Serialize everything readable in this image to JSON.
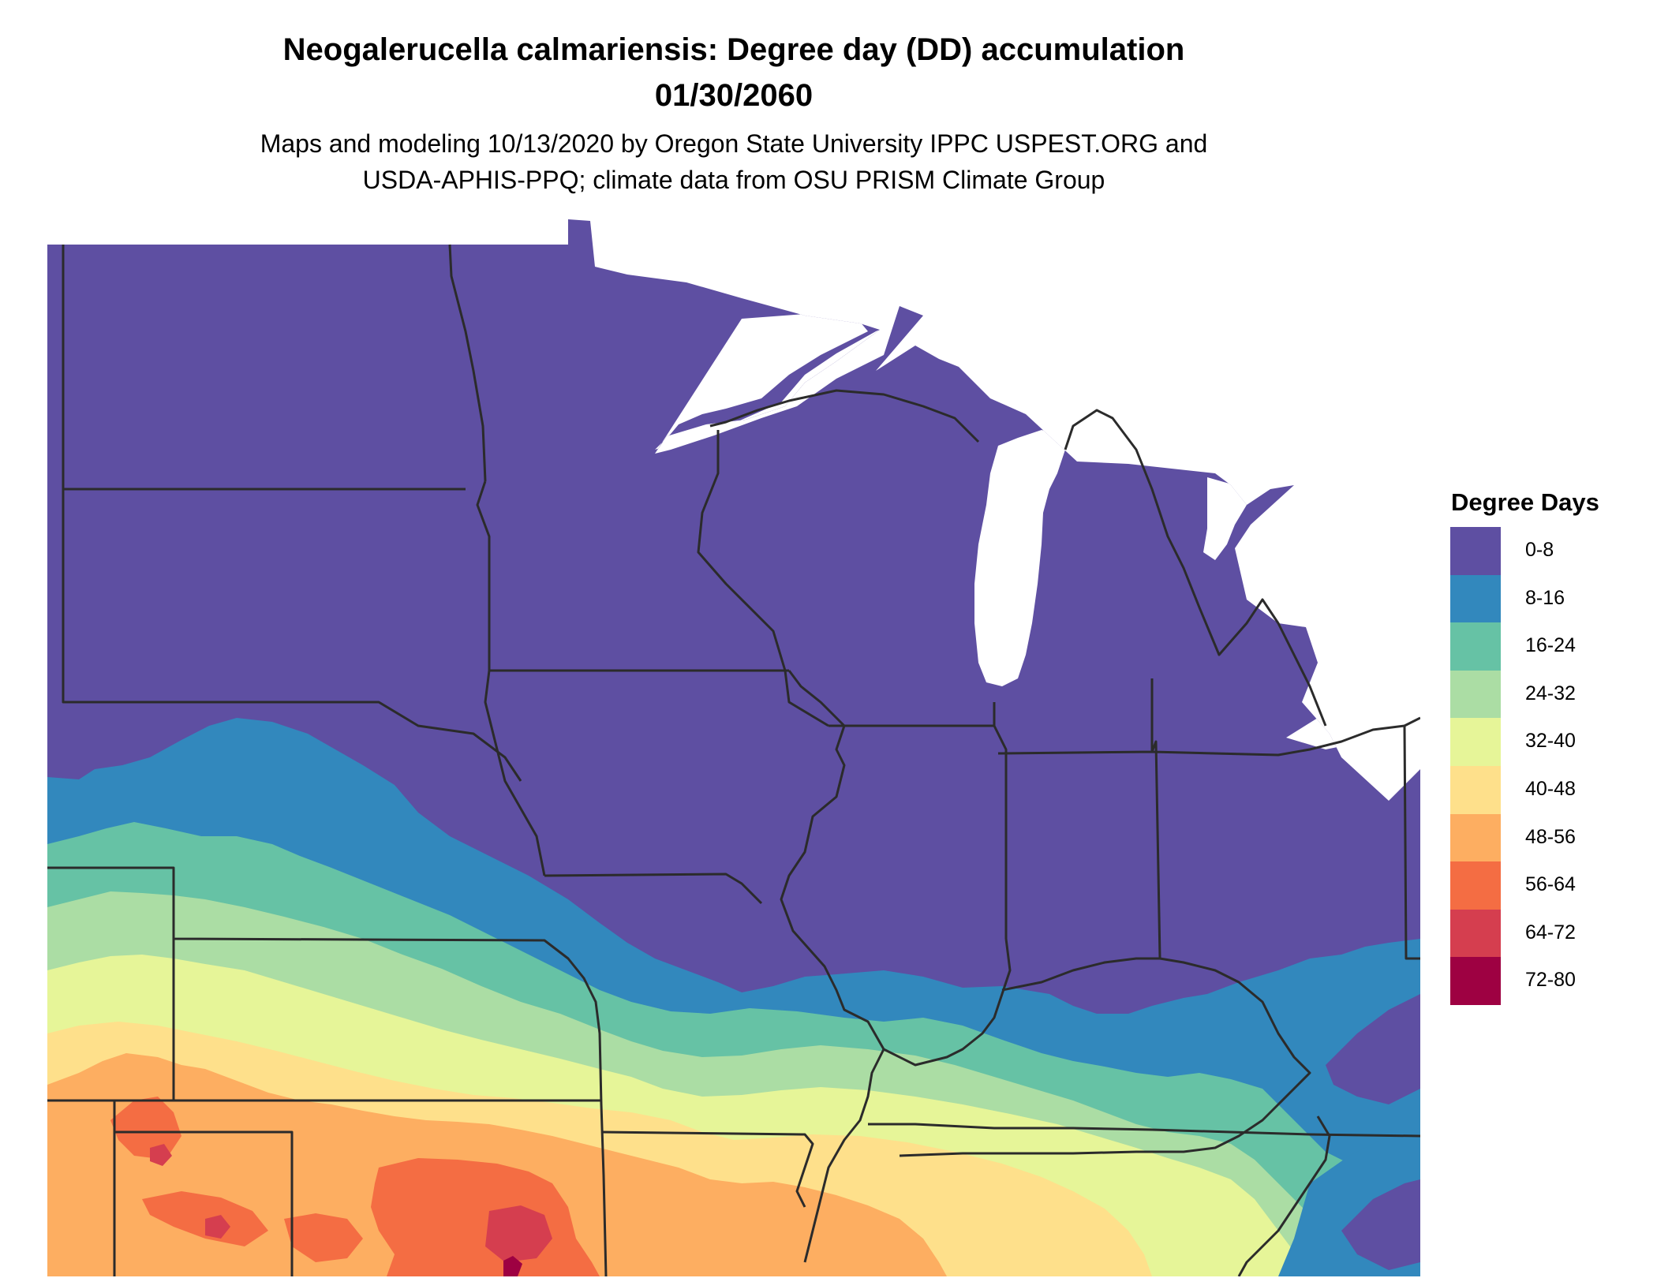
{
  "title": {
    "line1": "Neogalerucella calmariensis: Degree day (DD) accumulation",
    "line2": "01/30/2060"
  },
  "subtitle": {
    "line1": "Maps and modeling 10/13/2020 by Oregon State University IPPC USPEST.ORG and",
    "line2": "USDA-APHIS-PPQ; climate data from OSU PRISM Climate Group"
  },
  "legend": {
    "title": "Degree Days",
    "items": [
      {
        "label": "0-8",
        "color": "#5e4fa2"
      },
      {
        "label": "8-16",
        "color": "#3288bd"
      },
      {
        "label": "16-24",
        "color": "#66c2a5"
      },
      {
        "label": "24-32",
        "color": "#abdda4"
      },
      {
        "label": "32-40",
        "color": "#e6f598"
      },
      {
        "label": "40-48",
        "color": "#fee08b"
      },
      {
        "label": "48-56",
        "color": "#fdae61"
      },
      {
        "label": "56-64",
        "color": "#f46d43"
      },
      {
        "label": "64-72",
        "color": "#d53e4f"
      },
      {
        "label": "72-80",
        "color": "#9e0142"
      }
    ]
  },
  "map": {
    "boundary_color": "#2b2b2b",
    "water_color": "#ffffff"
  }
}
